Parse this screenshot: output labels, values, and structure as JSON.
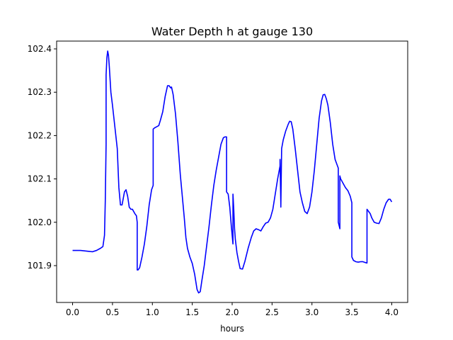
{
  "chart_data": {
    "type": "line",
    "title": "Water Depth h at gauge 130",
    "xlabel": "hours",
    "ylabel": "",
    "xlim": [
      -0.2,
      4.2
    ],
    "ylim": [
      101.815,
      102.418
    ],
    "xticks": [
      0.0,
      0.5,
      1.0,
      1.5,
      2.0,
      2.5,
      3.0,
      3.5,
      4.0
    ],
    "xtick_labels": [
      "0.0",
      "0.5",
      "1.0",
      "1.5",
      "2.0",
      "2.5",
      "3.0",
      "3.5",
      "4.0"
    ],
    "yticks": [
      101.9,
      102.0,
      102.1,
      102.2,
      102.3,
      102.4
    ],
    "ytick_labels": [
      "101.9",
      "102.0",
      "102.1",
      "102.2",
      "102.3",
      "102.4"
    ],
    "grid": false,
    "colors": {
      "line": "#0000ff",
      "axes": "#000000",
      "background": "#ffffff"
    },
    "series": [
      {
        "x": [
          0.0,
          0.1,
          0.2,
          0.25,
          0.3,
          0.35,
          0.38,
          0.4,
          0.41,
          0.42,
          0.42,
          0.43,
          0.44,
          0.45,
          0.46,
          0.48,
          0.5,
          0.53,
          0.56,
          0.58,
          0.6,
          0.62,
          0.65,
          0.67,
          0.69,
          0.71,
          0.73,
          0.75,
          0.78,
          0.8,
          0.81,
          0.81,
          0.82,
          0.84,
          0.87,
          0.9,
          0.93,
          0.96,
          0.99,
          1.01,
          1.01,
          1.03,
          1.05,
          1.08,
          1.1,
          1.13,
          1.16,
          1.19,
          1.21,
          1.23,
          1.24,
          1.26,
          1.29,
          1.32,
          1.35,
          1.38,
          1.4,
          1.42,
          1.44,
          1.47,
          1.5,
          1.53,
          1.56,
          1.58,
          1.6,
          1.62,
          1.65,
          1.68,
          1.71,
          1.74,
          1.77,
          1.8,
          1.83,
          1.86,
          1.89,
          1.91,
          1.93,
          1.93,
          1.95,
          1.97,
          1.99,
          2.01,
          2.01,
          2.02,
          2.03,
          2.04,
          2.06,
          2.08,
          2.1,
          2.13,
          2.16,
          2.2,
          2.24,
          2.27,
          2.3,
          2.33,
          2.36,
          2.39,
          2.42,
          2.45,
          2.48,
          2.51,
          2.54,
          2.57,
          2.6,
          2.6,
          2.61,
          2.61,
          2.62,
          2.64,
          2.67,
          2.7,
          2.72,
          2.74,
          2.76,
          2.79,
          2.82,
          2.85,
          2.88,
          2.91,
          2.94,
          2.97,
          3.0,
          3.03,
          3.06,
          3.09,
          3.12,
          3.14,
          3.16,
          3.18,
          3.2,
          3.23,
          3.26,
          3.29,
          3.32,
          3.33,
          3.33,
          3.35,
          3.35,
          3.36,
          3.39,
          3.42,
          3.45,
          3.48,
          3.5,
          3.5,
          3.52,
          3.55,
          3.58,
          3.61,
          3.64,
          3.67,
          3.69,
          3.69,
          3.71,
          3.73,
          3.75,
          3.78,
          3.81,
          3.84,
          3.87,
          3.9,
          3.93,
          3.96,
          3.98,
          4.0
        ],
        "y": [
          101.935,
          101.935,
          101.933,
          101.932,
          101.935,
          101.94,
          101.944,
          101.97,
          102.05,
          102.18,
          102.34,
          102.38,
          102.395,
          102.385,
          102.36,
          102.3,
          102.27,
          102.22,
          102.17,
          102.08,
          102.04,
          102.04,
          102.07,
          102.075,
          102.06,
          102.035,
          102.03,
          102.03,
          102.02,
          102.015,
          102.0,
          101.89,
          101.89,
          101.895,
          101.92,
          101.95,
          101.99,
          102.04,
          102.075,
          102.085,
          102.215,
          102.218,
          102.22,
          102.223,
          102.235,
          102.255,
          102.29,
          102.315,
          102.315,
          102.31,
          102.312,
          102.295,
          102.25,
          102.185,
          102.11,
          102.05,
          102.01,
          101.965,
          101.94,
          101.92,
          101.905,
          101.88,
          101.845,
          101.837,
          101.84,
          101.865,
          101.9,
          101.945,
          101.99,
          102.04,
          102.085,
          102.12,
          102.15,
          102.18,
          102.195,
          102.197,
          102.197,
          102.07,
          102.065,
          102.035,
          101.99,
          101.95,
          102.065,
          102.03,
          101.985,
          101.96,
          101.93,
          101.91,
          101.893,
          101.892,
          101.91,
          101.94,
          101.965,
          101.98,
          101.985,
          101.983,
          101.98,
          101.99,
          101.998,
          102.0,
          102.01,
          102.03,
          102.065,
          102.1,
          102.13,
          102.145,
          102.04,
          102.035,
          102.17,
          102.19,
          102.21,
          102.225,
          102.233,
          102.232,
          102.215,
          102.17,
          102.12,
          102.07,
          102.045,
          102.025,
          102.02,
          102.035,
          102.07,
          102.12,
          102.18,
          102.24,
          102.28,
          102.294,
          102.295,
          102.285,
          102.27,
          102.23,
          102.18,
          102.145,
          102.13,
          102.125,
          102.0,
          101.985,
          102.107,
          102.1,
          102.09,
          102.08,
          102.073,
          102.06,
          102.045,
          101.92,
          101.912,
          101.909,
          101.908,
          101.909,
          101.909,
          101.907,
          101.906,
          102.03,
          102.025,
          102.02,
          102.01,
          102.0,
          101.998,
          101.997,
          102.01,
          102.03,
          102.045,
          102.053,
          102.053,
          102.047
        ]
      }
    ]
  }
}
